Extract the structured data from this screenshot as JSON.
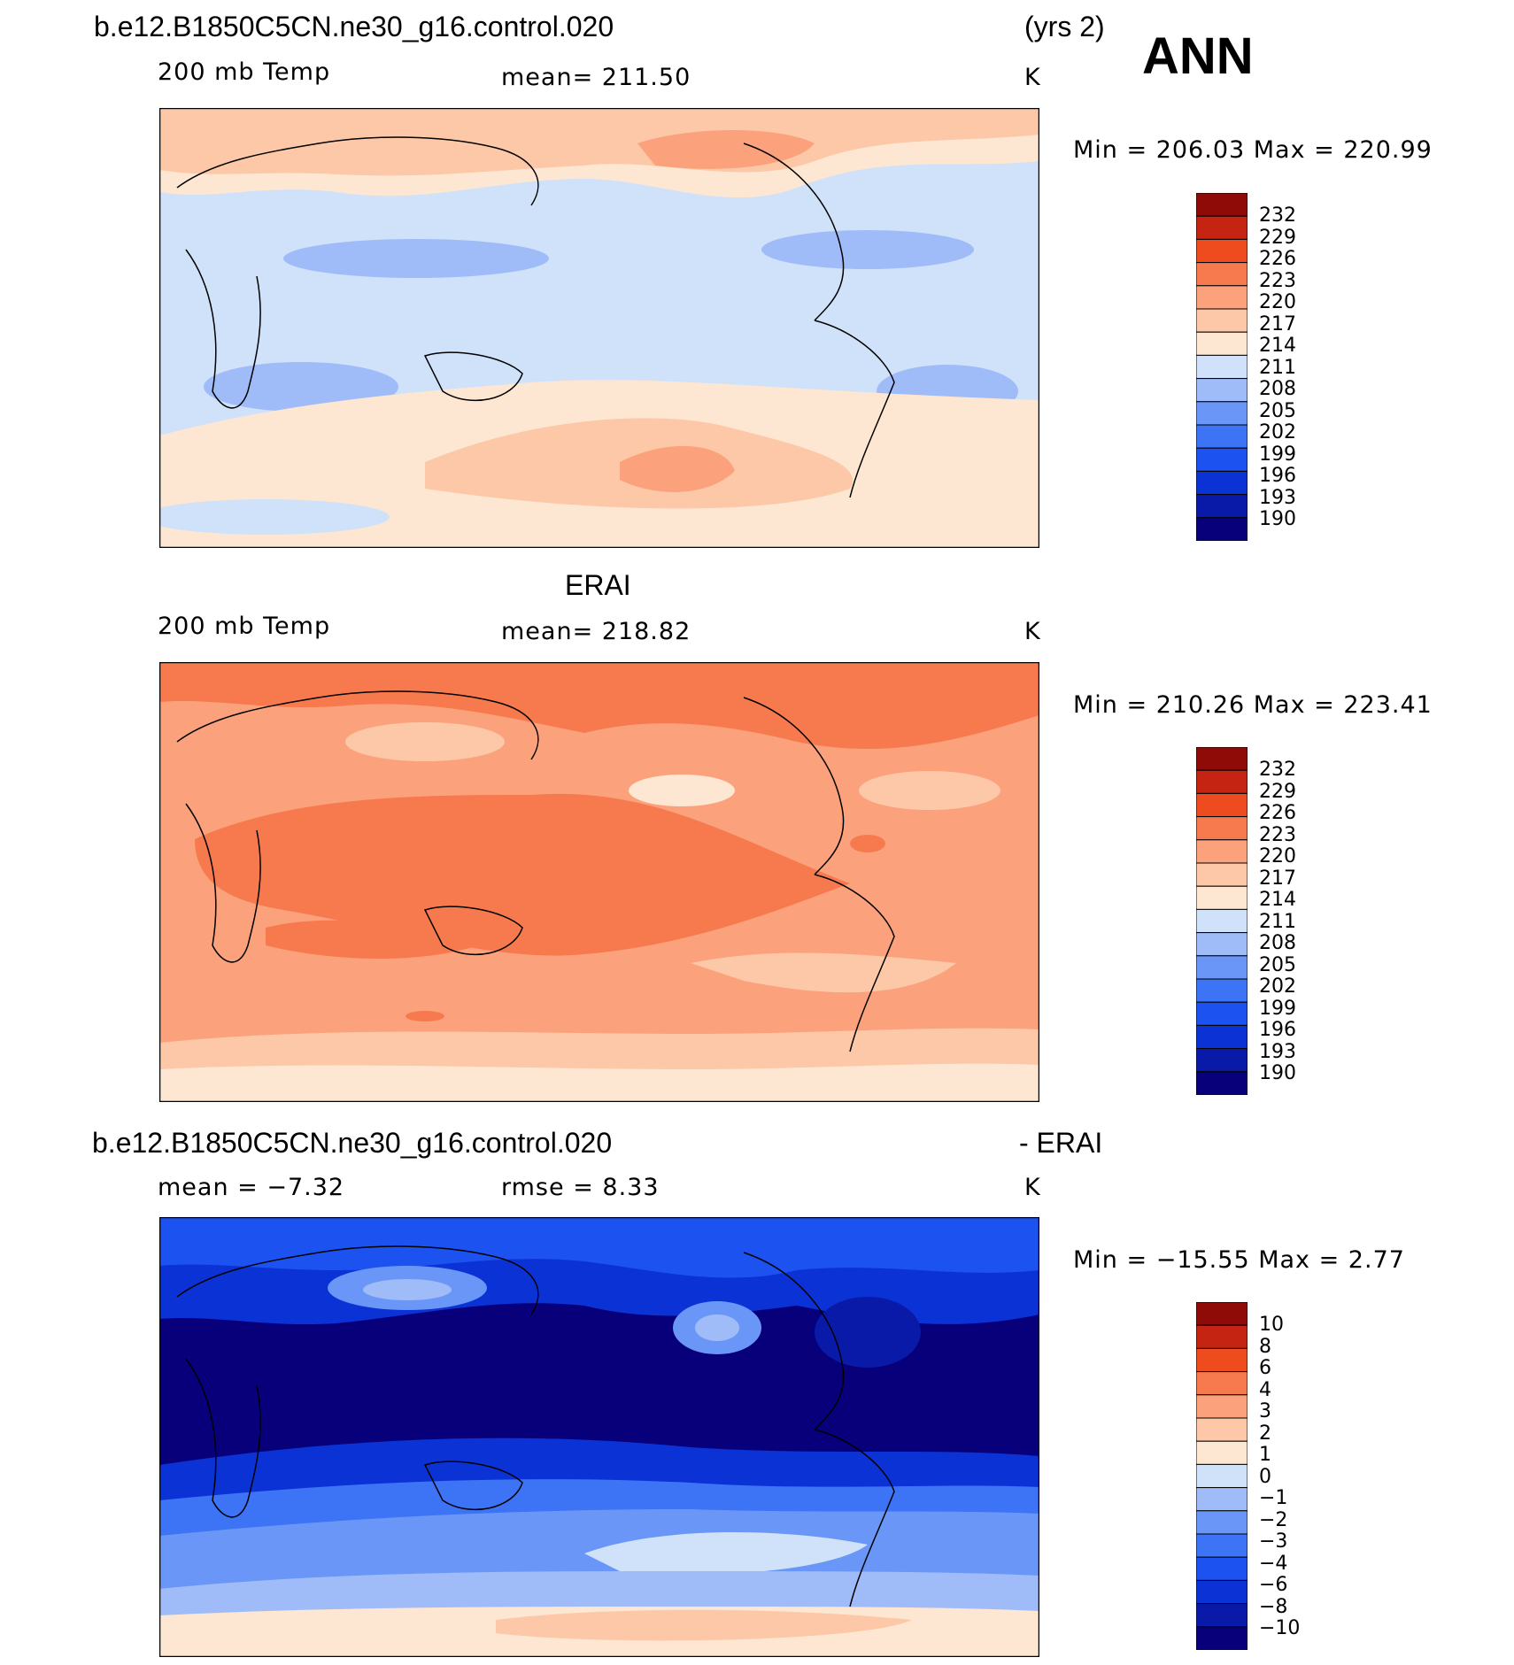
{
  "header": {
    "case": "b.e12.B1850C5CN.ne30_g16.control.020",
    "years": "(yrs 2)",
    "season": "ANN"
  },
  "panels": [
    {
      "id": "model",
      "title": "",
      "variable": "200 mb Temp",
      "mean_text": "mean= 211.50",
      "units": "K",
      "minmax_text": "Min = 206.03 Max = 220.99",
      "colorbar_levels": [
        "232",
        "229",
        "226",
        "223",
        "220",
        "217",
        "214",
        "211",
        "208",
        "205",
        "202",
        "199",
        "196",
        "193",
        "190"
      ]
    },
    {
      "id": "obs",
      "title": "ERAI",
      "variable": "200 mb Temp",
      "mean_text": "mean= 218.82",
      "units": "K",
      "minmax_text": "Min = 210.26 Max = 223.41",
      "colorbar_levels": [
        "232",
        "229",
        "226",
        "223",
        "220",
        "217",
        "214",
        "211",
        "208",
        "205",
        "202",
        "199",
        "196",
        "193",
        "190"
      ]
    },
    {
      "id": "diff",
      "title_left": "b.e12.B1850C5CN.ne30_g16.control.020",
      "title_right": "- ERAI",
      "mean_text": "mean = −7.32",
      "rmse_text": "rmse = 8.33",
      "units": "K",
      "minmax_text": "Min = −15.55 Max = 2.77",
      "colorbar_levels": [
        "10",
        "8",
        "6",
        "4",
        "3",
        "2",
        "1",
        "0",
        "−1",
        "−2",
        "−3",
        "−4",
        "−6",
        "−8",
        "−10"
      ]
    }
  ],
  "colors": {
    "palette": [
      "#08007a",
      "#0a1aa8",
      "#0b32d4",
      "#1c52ef",
      "#3d73f5",
      "#6a97f7",
      "#9fbcf8",
      "#d0e2fa",
      "#fde7d2",
      "#fcc8a8",
      "#fba27c",
      "#f77a4e",
      "#ee4b1f",
      "#c42411",
      "#8f0b07"
    ]
  }
}
